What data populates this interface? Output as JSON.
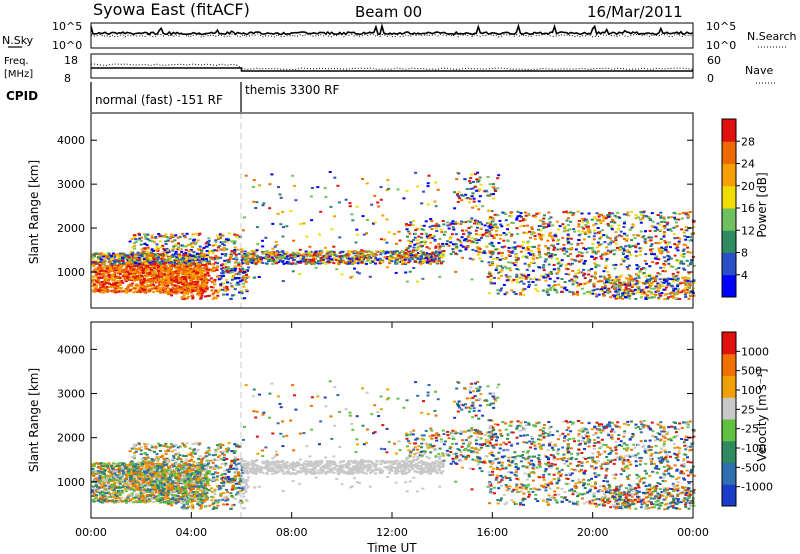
{
  "header": {
    "site": "Syowa East (fitACF)",
    "beam": "Beam 00",
    "date": "16/Mar/2011"
  },
  "strips": {
    "nsky": {
      "label": "N.Sky",
      "ticks": [
        "10^5",
        "10^0"
      ]
    },
    "nsearch": {
      "label": "N.Search",
      "ticks": [
        "10^5",
        "10^0"
      ]
    },
    "freq": {
      "label_line1": "Freq.",
      "label_line2": "[MHz]",
      "ticks": [
        "18",
        "8"
      ]
    },
    "nave": {
      "label": "Nave",
      "ticks": [
        "60",
        "0"
      ]
    },
    "cpid": {
      "label": "CPID",
      "segments": [
        {
          "name": "normal (fast) -151 RF",
          "start_hour": 0,
          "end_hour": 6
        },
        {
          "name": "themis 3300 RF",
          "start_hour": 6,
          "end_hour": 24
        }
      ]
    }
  },
  "chart_data": [
    {
      "type": "heatmap",
      "title": "",
      "ylabel": "Slant Range [km]",
      "xlim": [
        0,
        24
      ],
      "ylim": [
        180,
        4620
      ],
      "yticks": [
        "1000",
        "2000",
        "3000",
        "4000"
      ],
      "colorbar": {
        "label": "Power [dB]",
        "ticks": [
          "4",
          "8",
          "12",
          "16",
          "20",
          "24",
          "28"
        ],
        "colors": [
          "#0000ff",
          "#2b4fc7",
          "#2f8a60",
          "#6fc060",
          "#f0dc00",
          "#f5a000",
          "#ee6a00",
          "#e01010"
        ]
      }
    },
    {
      "type": "heatmap",
      "title": "",
      "ylabel": "Slant Range [km]",
      "xlabel": "Time UT",
      "xlim": [
        0,
        24
      ],
      "ylim": [
        180,
        4620
      ],
      "yticks": [
        "1000",
        "2000",
        "3000",
        "4000"
      ],
      "xticks": [
        "00:00",
        "04:00",
        "08:00",
        "12:00",
        "16:00",
        "20:00",
        "00:00"
      ],
      "colorbar": {
        "label": "Velocity [m s⁻¹]",
        "ticks": [
          "1000",
          "500",
          "100",
          "25",
          "-25",
          "-100",
          "-500",
          "-1000"
        ],
        "colors": [
          "#1a3cc8",
          "#2f6fb0",
          "#2f8a60",
          "#60c040",
          "#c8c8c8",
          "#f0a000",
          "#f07000",
          "#e01010"
        ]
      }
    }
  ]
}
